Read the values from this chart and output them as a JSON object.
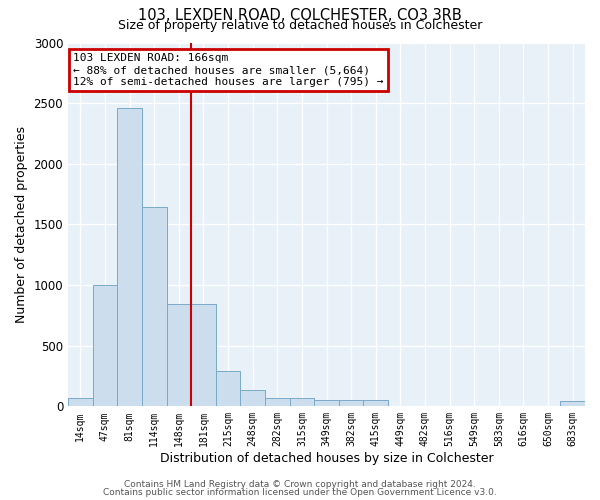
{
  "title": "103, LEXDEN ROAD, COLCHESTER, CO3 3RB",
  "subtitle": "Size of property relative to detached houses in Colchester",
  "xlabel": "Distribution of detached houses by size in Colchester",
  "ylabel": "Number of detached properties",
  "bar_labels": [
    "14sqm",
    "47sqm",
    "81sqm",
    "114sqm",
    "148sqm",
    "181sqm",
    "215sqm",
    "248sqm",
    "282sqm",
    "315sqm",
    "349sqm",
    "382sqm",
    "415sqm",
    "449sqm",
    "482sqm",
    "516sqm",
    "549sqm",
    "583sqm",
    "616sqm",
    "650sqm",
    "683sqm"
  ],
  "bar_values": [
    65,
    1000,
    2460,
    1640,
    840,
    840,
    290,
    135,
    65,
    65,
    50,
    50,
    50,
    0,
    0,
    0,
    0,
    0,
    0,
    0,
    40
  ],
  "bar_color": "#ccdded",
  "bar_edgecolor": "#7aaac8",
  "vline_x": 4.5,
  "vline_color": "#cc0000",
  "annotation_text": "103 LEXDEN ROAD: 166sqm\n← 88% of detached houses are smaller (5,664)\n12% of semi-detached houses are larger (795) →",
  "annotation_box_edgecolor": "#cc0000",
  "ylim": [
    0,
    3000
  ],
  "yticks": [
    0,
    500,
    1000,
    1500,
    2000,
    2500,
    3000
  ],
  "footer_line1": "Contains HM Land Registry data © Crown copyright and database right 2024.",
  "footer_line2": "Contains public sector information licensed under the Open Government Licence v3.0.",
  "plot_bg_color": "#e8f0f8",
  "fig_bg_color": "#ffffff",
  "grid_color": "#ffffff"
}
